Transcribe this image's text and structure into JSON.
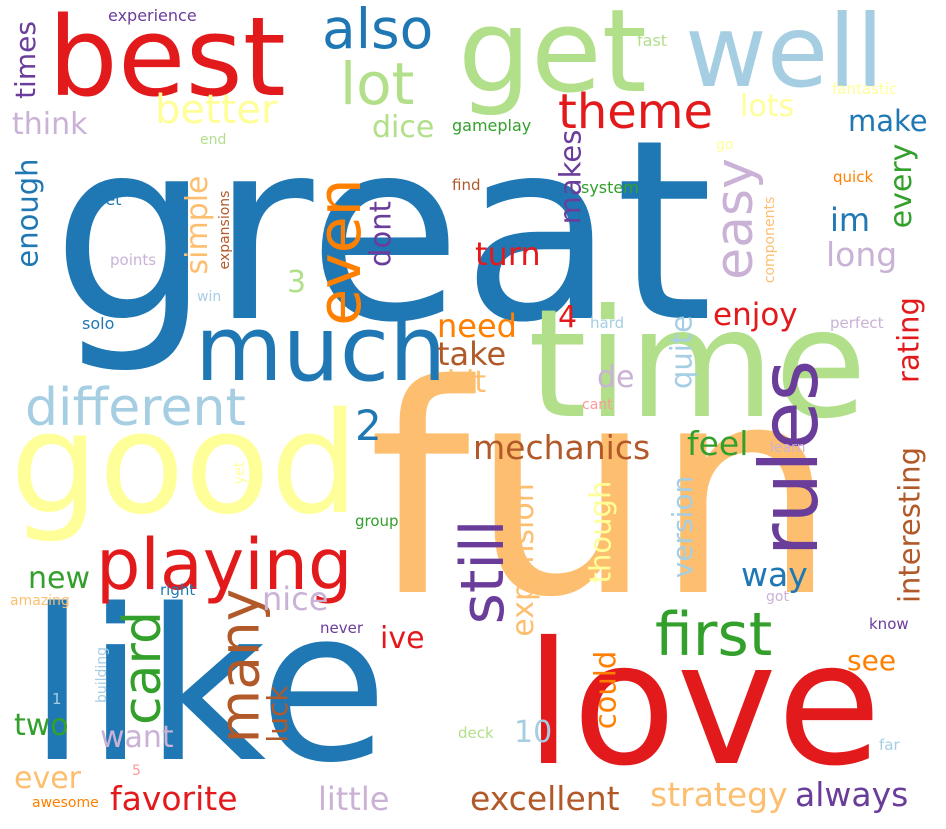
{
  "words": [
    {
      "text": "great",
      "color": "#1f78b4",
      "rotated": false
    },
    {
      "text": "fun",
      "color": "#fdbf6f",
      "rotated": false
    },
    {
      "text": "like",
      "color": "#1f78b4",
      "rotated": false
    },
    {
      "text": "time",
      "color": "#b2df8a",
      "rotated": false
    },
    {
      "text": "love",
      "color": "#e31a1c",
      "rotated": false
    },
    {
      "text": "good",
      "color": "#ffff99",
      "rotated": false
    },
    {
      "text": "best",
      "color": "#e31a1c",
      "rotated": false
    },
    {
      "text": "get",
      "color": "#b2df8a",
      "rotated": false
    },
    {
      "text": "well",
      "color": "#a6cee3",
      "rotated": false
    },
    {
      "text": "much",
      "color": "#1f78b4",
      "rotated": false
    },
    {
      "text": "also",
      "color": "#1f78b4",
      "rotated": false
    },
    {
      "text": "playing",
      "color": "#e31a1c",
      "rotated": false
    },
    {
      "text": "rules",
      "color": "#6a3d9a",
      "rotated": true
    },
    {
      "text": "first",
      "color": "#33a02c",
      "rotated": false
    },
    {
      "text": "different",
      "color": "#a6cee3",
      "rotated": false
    },
    {
      "text": "lot",
      "color": "#b2df8a",
      "rotated": false
    },
    {
      "text": "even",
      "color": "#ff7f00",
      "rotated": true
    },
    {
      "text": "still",
      "color": "#6a3d9a",
      "rotated": true
    },
    {
      "text": "theme",
      "color": "#e31a1c",
      "rotated": false
    },
    {
      "text": "many",
      "color": "#b15928",
      "rotated": true
    },
    {
      "text": "card",
      "color": "#33a02c",
      "rotated": true
    },
    {
      "text": "easy",
      "color": "#cab2d6",
      "rotated": true
    },
    {
      "text": "better",
      "color": "#ffff99",
      "rotated": false
    },
    {
      "text": "2",
      "color": "#1f78b4",
      "rotated": false
    },
    {
      "text": "mechanics",
      "color": "#b15928",
      "rotated": false
    },
    {
      "text": "excellent",
      "color": "#b15928",
      "rotated": false
    },
    {
      "text": "favorite",
      "color": "#e31a1c",
      "rotated": false
    },
    {
      "text": "strategy",
      "color": "#fdbf6f",
      "rotated": false
    },
    {
      "text": "always",
      "color": "#6a3d9a",
      "rotated": false
    },
    {
      "text": "little",
      "color": "#cab2d6",
      "rotated": false
    },
    {
      "text": "nice",
      "color": "#cab2d6",
      "rotated": false
    },
    {
      "text": "new",
      "color": "#33a02c",
      "rotated": false
    },
    {
      "text": "way",
      "color": "#1f78b4",
      "rotated": false
    },
    {
      "text": "feel",
      "color": "#33a02c",
      "rotated": false
    },
    {
      "text": "turn",
      "color": "#e31a1c",
      "rotated": false
    },
    {
      "text": "need",
      "color": "#ff7f00",
      "rotated": false
    },
    {
      "text": "take",
      "color": "#b15928",
      "rotated": false
    },
    {
      "text": "enjoy",
      "color": "#e31a1c",
      "rotated": false
    },
    {
      "text": "lots",
      "color": "#ffff99",
      "rotated": false
    },
    {
      "text": "dice",
      "color": "#b2df8a",
      "rotated": false
    },
    {
      "text": "make",
      "color": "#1f78b4",
      "rotated": false
    },
    {
      "text": "im",
      "color": "#1f78b4",
      "rotated": false
    },
    {
      "text": "long",
      "color": "#cab2d6",
      "rotated": false
    },
    {
      "text": "think",
      "color": "#cab2d6",
      "rotated": false
    },
    {
      "text": "two",
      "color": "#33a02c",
      "rotated": false
    },
    {
      "text": "want",
      "color": "#cab2d6",
      "rotated": false
    },
    {
      "text": "see",
      "color": "#ff7f00",
      "rotated": false
    },
    {
      "text": "ive",
      "color": "#e31a1c",
      "rotated": false
    },
    {
      "text": "bit",
      "color": "#fdbf6f",
      "rotated": false
    },
    {
      "text": "de",
      "color": "#cab2d6",
      "rotated": false
    },
    {
      "text": "4",
      "color": "#e31a1c",
      "rotated": false
    },
    {
      "text": "3",
      "color": "#b2df8a",
      "rotated": false
    },
    {
      "text": "10",
      "color": "#a6cee3",
      "rotated": false
    },
    {
      "text": "ever",
      "color": "#fdbf6f",
      "rotated": false
    },
    {
      "text": "times",
      "color": "#6a3d9a",
      "rotated": true
    },
    {
      "text": "enough",
      "color": "#1f78b4",
      "rotated": true
    },
    {
      "text": "simple",
      "color": "#fdbf6f",
      "rotated": true
    },
    {
      "text": "dont",
      "color": "#6a3d9a",
      "rotated": true
    },
    {
      "text": "makes",
      "color": "#6a3d9a",
      "rotated": true
    },
    {
      "text": "every",
      "color": "#33a02c",
      "rotated": true
    },
    {
      "text": "rating",
      "color": "#e31a1c",
      "rotated": true
    },
    {
      "text": "interesting",
      "color": "#b15928",
      "rotated": true
    },
    {
      "text": "expansion",
      "color": "#fdbf6f",
      "rotated": true
    },
    {
      "text": "though",
      "color": "#ffff99",
      "rotated": true
    },
    {
      "text": "version",
      "color": "#a6cee3",
      "rotated": true
    },
    {
      "text": "quite",
      "color": "#a6cee3",
      "rotated": true
    },
    {
      "text": "could",
      "color": "#ff7f00",
      "rotated": true
    },
    {
      "text": "luck",
      "color": "#b15928",
      "rotated": true
    },
    {
      "text": "experience",
      "color": "#6a3d9a",
      "rotated": false
    },
    {
      "text": "fast",
      "color": "#b2df8a",
      "rotated": false
    },
    {
      "text": "fantastic",
      "color": "#ffff99",
      "rotated": false
    },
    {
      "text": "gameplay",
      "color": "#33a02c",
      "rotated": false
    },
    {
      "text": "end",
      "color": "#b2df8a",
      "rotated": false
    },
    {
      "text": "go",
      "color": "#ffff99",
      "rotated": false
    },
    {
      "text": "find",
      "color": "#b15928",
      "rotated": false
    },
    {
      "text": "system",
      "color": "#33a02c",
      "rotated": false
    },
    {
      "text": "quick",
      "color": "#ff7f00",
      "rotated": false
    },
    {
      "text": "set",
      "color": "#1f78b4",
      "rotated": false
    },
    {
      "text": "points",
      "color": "#cab2d6",
      "rotated": false
    },
    {
      "text": "expansions",
      "color": "#b15928",
      "rotated": true
    },
    {
      "text": "components",
      "color": "#fdbf6f",
      "rotated": true
    },
    {
      "text": "win",
      "color": "#a6cee3",
      "rotated": false
    },
    {
      "text": "solo",
      "color": "#1f78b4",
      "rotated": false
    },
    {
      "text": "hard",
      "color": "#a6cee3",
      "rotated": false
    },
    {
      "text": "perfect",
      "color": "#cab2d6",
      "rotated": false
    },
    {
      "text": "cant",
      "color": "#fb9a99",
      "rotated": false
    },
    {
      "text": "learn",
      "color": "#cab2d6",
      "rotated": false
    },
    {
      "text": "yet",
      "color": "#ffff99",
      "rotated": true
    },
    {
      "text": "group",
      "color": "#33a02c",
      "rotated": false
    },
    {
      "text": "amazing",
      "color": "#fdbf6f",
      "rotated": false
    },
    {
      "text": "right",
      "color": "#1f78b4",
      "rotated": false
    },
    {
      "text": "got",
      "color": "#cab2d6",
      "rotated": false
    },
    {
      "text": "never",
      "color": "#6a3d9a",
      "rotated": false
    },
    {
      "text": "know",
      "color": "#6a3d9a",
      "rotated": false
    },
    {
      "text": "building",
      "color": "#a6cee3",
      "rotated": true
    },
    {
      "text": "deck",
      "color": "#b2df8a",
      "rotated": false
    },
    {
      "text": "far",
      "color": "#a6cee3",
      "rotated": false
    },
    {
      "text": "1",
      "color": "#a6cee3",
      "rotated": false
    },
    {
      "text": "5",
      "color": "#fb9a99",
      "rotated": false
    },
    {
      "text": "awesome",
      "color": "#ff7f00",
      "rotated": false
    }
  ]
}
